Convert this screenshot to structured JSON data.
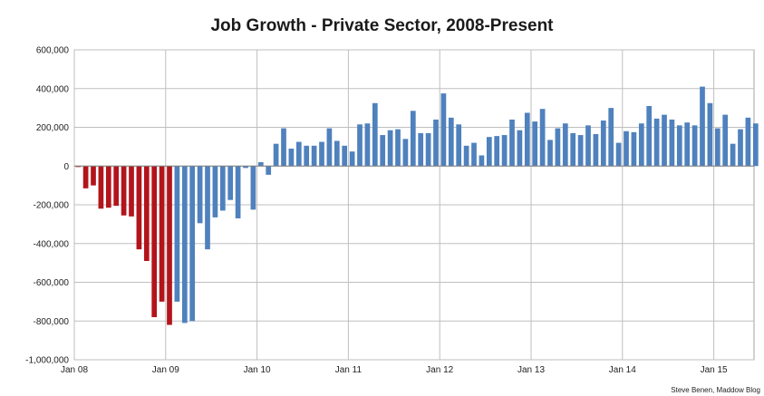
{
  "chart_data": {
    "type": "bar",
    "title": "Job Growth - Private Sector, 2008-Present",
    "credit": "Steve Benen, Maddow Blog",
    "xlabel": "",
    "ylabel": "",
    "ylim": [
      -1000000,
      600000
    ],
    "yticks": [
      600000,
      400000,
      200000,
      0,
      -200000,
      -400000,
      -600000,
      -800000,
      -1000000
    ],
    "ytick_labels": [
      "600,000",
      "400,000",
      "200,000",
      "0",
      "-200,000",
      "-400,000",
      "-600,000",
      "-800,000",
      "-1,000,000"
    ],
    "xtick_labels": [
      "Jan 08",
      "Jan 09",
      "Jan 10",
      "Jan 11",
      "Jan 12",
      "Jan 13",
      "Jan 14",
      "Jan 15"
    ],
    "xtick_month_index": [
      0,
      12,
      24,
      36,
      48,
      60,
      72,
      84
    ],
    "grid": true,
    "start_month": "Jan 2008",
    "colors": {
      "negative_period": "#b3141b",
      "later_period": "#4f81bd"
    },
    "red_count": 13,
    "values": [
      -5000,
      -115000,
      -100000,
      -220000,
      -215000,
      -205000,
      -255000,
      -260000,
      -430000,
      -490000,
      -780000,
      -700000,
      -820000,
      -700000,
      -810000,
      -800000,
      -295000,
      -430000,
      -265000,
      -230000,
      -175000,
      -270000,
      -10000,
      -225000,
      20000,
      -45000,
      115000,
      195000,
      90000,
      125000,
      105000,
      105000,
      125000,
      195000,
      130000,
      105000,
      75000,
      215000,
      220000,
      325000,
      160000,
      185000,
      190000,
      140000,
      285000,
      170000,
      170000,
      240000,
      375000,
      250000,
      215000,
      105000,
      120000,
      55000,
      150000,
      155000,
      160000,
      240000,
      185000,
      275000,
      230000,
      295000,
      135000,
      195000,
      220000,
      170000,
      160000,
      210000,
      165000,
      235000,
      300000,
      120000,
      180000,
      175000,
      220000,
      310000,
      245000,
      265000,
      240000,
      210000,
      225000,
      210000,
      410000,
      325000,
      195000,
      265000,
      115000,
      190000,
      250000,
      220000
    ]
  }
}
